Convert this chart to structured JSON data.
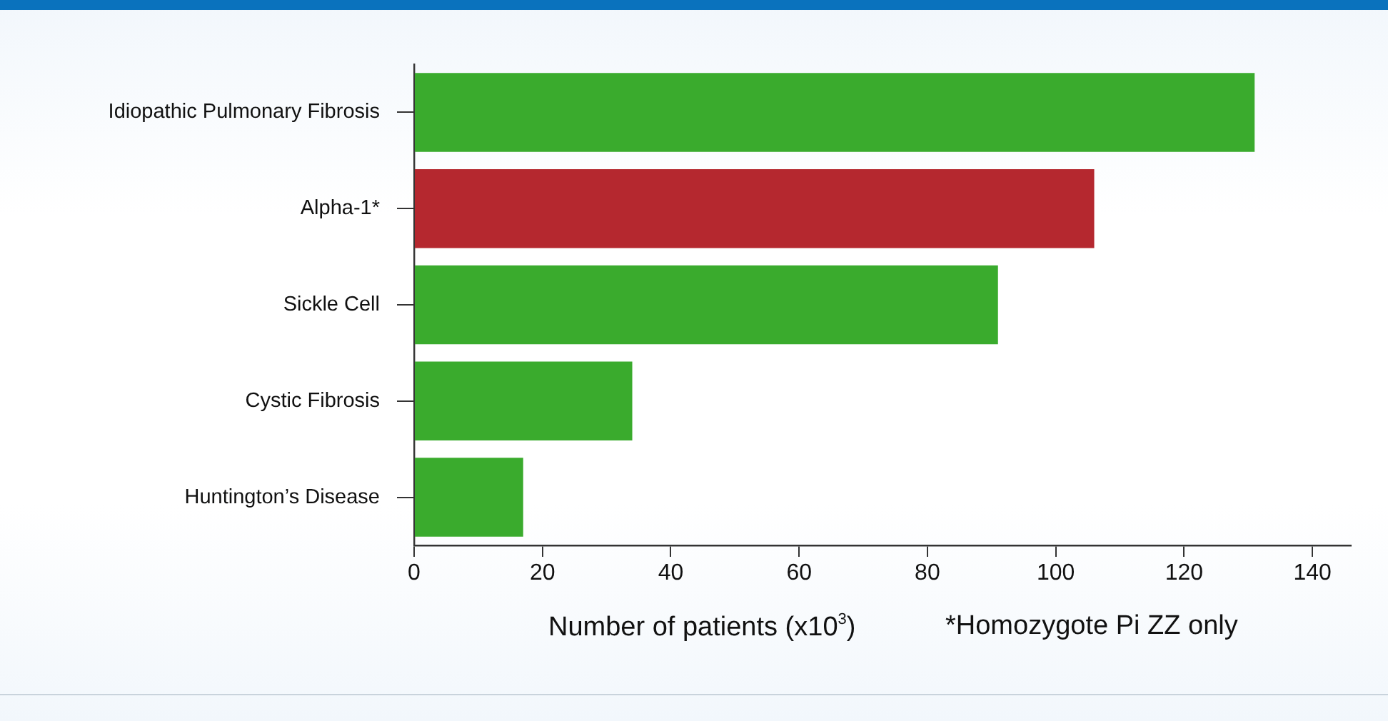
{
  "chart_data": {
    "type": "bar",
    "orientation": "horizontal",
    "categories": [
      "Idiopathic Pulmonary Fibrosis",
      "Alpha-1*",
      "Sickle Cell",
      "Cystic Fibrosis",
      "Huntington’s Disease"
    ],
    "values": [
      131,
      106,
      91,
      34,
      17
    ],
    "colors": [
      "#3aab2d",
      "#b5282f",
      "#3aab2d",
      "#3aab2d",
      "#3aab2d"
    ],
    "xlim": [
      0,
      146
    ],
    "xticks": [
      0,
      20,
      40,
      60,
      80,
      100,
      120,
      140
    ],
    "xlabel": "Number of patients (x10$^{3}$)",
    "annotations": [
      "*Homozygote Pi ZZ only"
    ],
    "grid": false,
    "legend": false
  }
}
